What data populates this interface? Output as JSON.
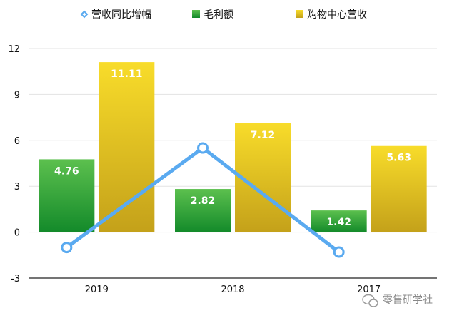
{
  "chart_data": {
    "type": "bar",
    "categories": [
      "2019",
      "2018",
      "2017"
    ],
    "ylim": [
      -3,
      12
    ],
    "yticks": [
      -3,
      0,
      3,
      6,
      9,
      12
    ],
    "legend_position": "top",
    "grid": true,
    "series": [
      {
        "name": "营收同比增幅",
        "kind": "line",
        "values": [
          -1.0,
          5.5,
          -1.3
        ],
        "color": "#5aaaf0"
      },
      {
        "name": "毛利额",
        "kind": "bar",
        "values": [
          4.76,
          2.82,
          1.42
        ],
        "labels": [
          "4.76",
          "2.82",
          "1.42"
        ],
        "color": "#2ea33a"
      },
      {
        "name": "购物中心营收",
        "kind": "bar",
        "values": [
          11.11,
          7.12,
          5.63
        ],
        "labels": [
          "11.11",
          "7.12",
          "5.63"
        ],
        "color": "#e8c020"
      }
    ]
  },
  "watermark": {
    "text": "零售研学社",
    "icon": "wechat-icon"
  }
}
